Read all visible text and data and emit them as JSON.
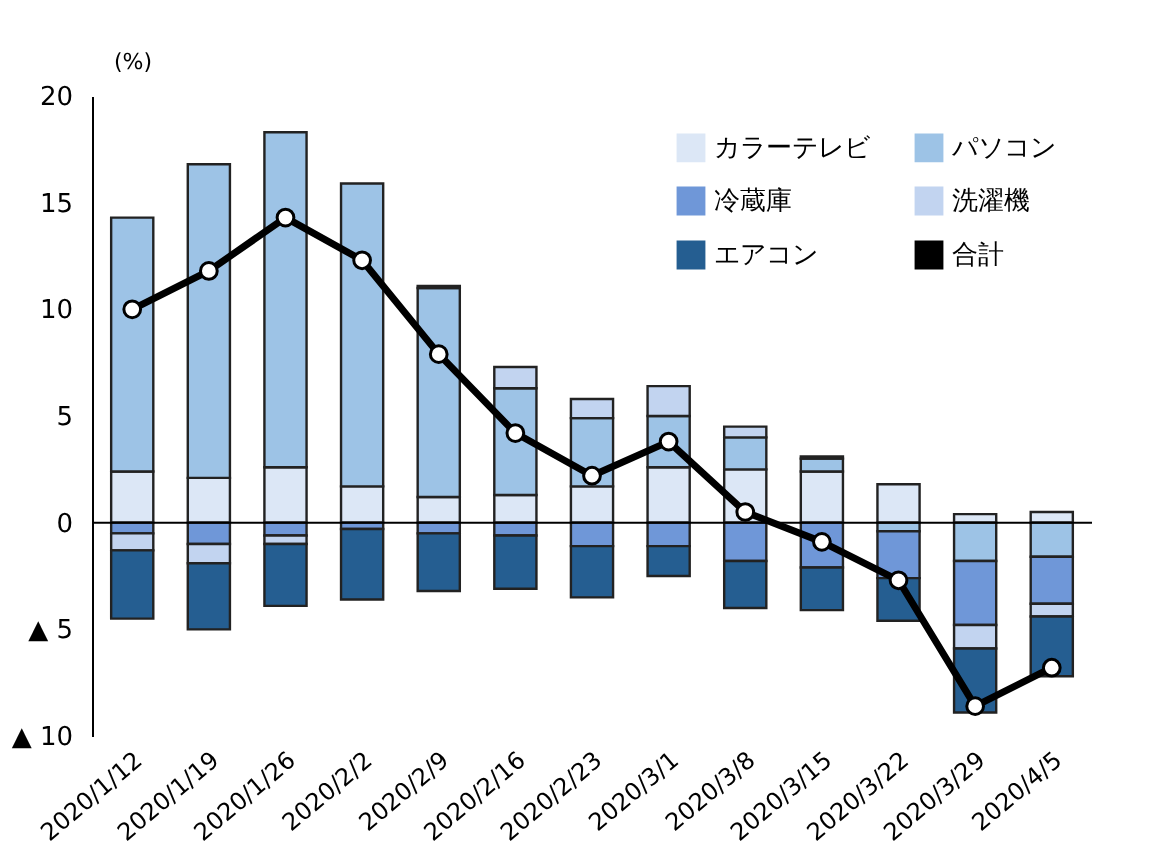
{
  "chart_data": {
    "type": "bar",
    "stacked": true,
    "ylabel": "(%)",
    "categories": [
      "2020/1/12",
      "2020/1/19",
      "2020/1/26",
      "2020/2/2",
      "2020/2/9",
      "2020/2/16",
      "2020/2/23",
      "2020/3/1",
      "2020/3/8",
      "2020/3/15",
      "2020/3/22",
      "2020/3/29",
      "2020/4/5"
    ],
    "series": [
      {
        "name": "カラーテレビ",
        "color": "#dce7f6",
        "values": [
          2.4,
          2.1,
          2.6,
          1.7,
          1.2,
          1.3,
          1.7,
          2.6,
          2.5,
          2.4,
          1.8,
          0.4,
          0.5
        ]
      },
      {
        "name": "パソコン",
        "color": "#9dc3e6",
        "values": [
          11.9,
          14.7,
          15.7,
          14.2,
          9.8,
          5.0,
          3.2,
          2.4,
          1.5,
          0.6,
          -0.4,
          -1.8,
          -1.6
        ]
      },
      {
        "name": "冷蔵庫",
        "color": "#6f97d8",
        "values": [
          -0.5,
          -1.0,
          -0.6,
          -0.3,
          -0.5,
          -0.6,
          -1.1,
          -1.1,
          -1.8,
          -2.1,
          -2.2,
          -3.0,
          -2.2
        ]
      },
      {
        "name": "洗濯機",
        "color": "#c2d4f0",
        "values": [
          -0.8,
          -0.9,
          -0.4,
          0,
          0.1,
          1.0,
          0.9,
          1.4,
          0.5,
          0.1,
          0,
          -1.1,
          -0.6
        ]
      },
      {
        "name": "エアコン",
        "color": "#255e91",
        "values": [
          -3.2,
          -3.1,
          -2.9,
          -3.3,
          -2.7,
          -2.5,
          -2.4,
          -1.4,
          -2.2,
          -2.0,
          -2.0,
          -3.0,
          -2.8
        ]
      },
      {
        "name": "合計",
        "type": "line",
        "color": "#000000",
        "values": [
          10.0,
          11.8,
          14.3,
          12.3,
          7.9,
          4.2,
          2.2,
          3.8,
          0.5,
          -0.9,
          -2.7,
          -8.6,
          -6.8
        ]
      }
    ],
    "ylim": [
      -10,
      20
    ],
    "yticks": [
      20,
      15,
      10,
      5,
      0,
      {
        "value": -5,
        "label": "▲ 5"
      },
      {
        "value": -10,
        "label": "▲ 10"
      }
    ],
    "ref_lines": [
      {
        "axis": "y",
        "value": 0,
        "color": "#000000",
        "line_style": "solid"
      }
    ],
    "marker": "circle",
    "line_style": "solid",
    "grid": false,
    "legend": "top right"
  }
}
